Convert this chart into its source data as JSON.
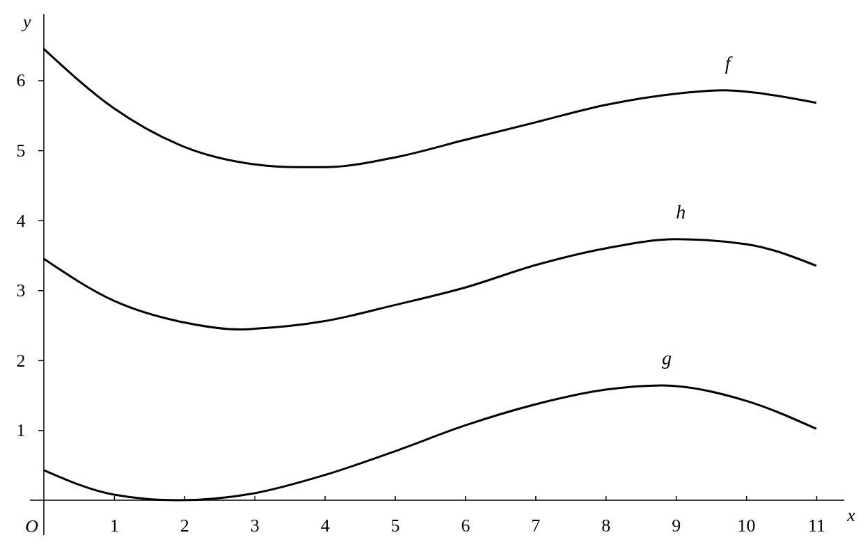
{
  "chart_data": {
    "type": "line",
    "xlabel": "x",
    "ylabel": "y",
    "x": [
      0,
      1,
      2,
      3,
      3.6,
      4,
      5,
      6,
      7,
      8,
      9,
      9.7,
      10,
      11
    ],
    "series": [
      {
        "name": "f",
        "color": "#000000",
        "values": [
          6.45,
          5.6,
          5.05,
          4.8,
          4.76,
          4.76,
          4.9,
          5.15,
          5.4,
          5.65,
          5.81,
          5.86,
          5.84,
          5.68
        ]
      },
      {
        "name": "h",
        "color": "#000000",
        "x": [
          0,
          1,
          2,
          2.8,
          3,
          4,
          5,
          6,
          7,
          8,
          9,
          10,
          11
        ],
        "values": [
          3.45,
          2.85,
          2.54,
          2.44,
          2.45,
          2.56,
          2.79,
          3.04,
          3.36,
          3.6,
          3.73,
          3.66,
          3.35
        ]
      },
      {
        "name": "g",
        "color": "#000000",
        "x": [
          0,
          1,
          1.9,
          3,
          4,
          5,
          6,
          7,
          8,
          8.8,
          9,
          10,
          11
        ],
        "values": [
          0.43,
          0.08,
          0,
          0.1,
          0.36,
          0.7,
          1.07,
          1.37,
          1.58,
          1.64,
          1.63,
          1.42,
          1.02
        ]
      }
    ],
    "xlim": [
      0,
      11.4
    ],
    "ylim": [
      0,
      6.95
    ],
    "xticks": [
      1,
      2,
      3,
      4,
      5,
      6,
      7,
      8,
      9,
      10,
      11
    ],
    "annotations": [
      "O"
    ],
    "yticks": [
      1,
      2,
      3,
      4,
      5,
      6
    ],
    "grid": false,
    "legend": false,
    "marker": "none",
    "line_style": "solid"
  }
}
